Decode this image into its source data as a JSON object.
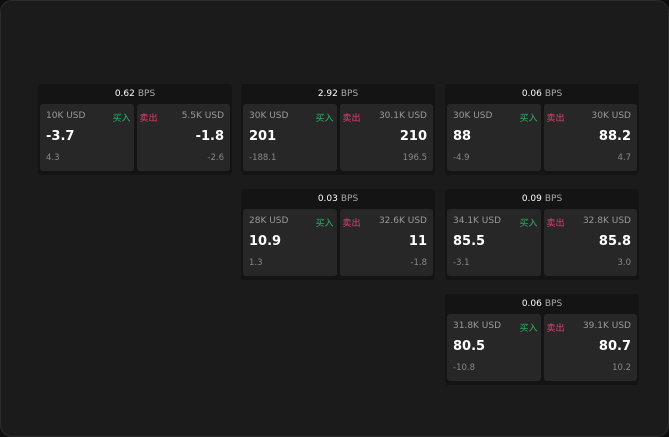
{
  "labels": {
    "unit": "BPS",
    "buy": "买入",
    "sell": "卖出"
  },
  "colors": {
    "buy": "#2db46a",
    "sell": "#e0406a",
    "background": "#1b1b1b"
  },
  "widgets": [
    {
      "spread": "0.62",
      "buy": {
        "size": "10K USD",
        "price": "-3.7",
        "change": "4.3"
      },
      "sell": {
        "size": "5.5K USD",
        "price": "-1.8",
        "change": "-2.6"
      }
    },
    {
      "spread": "2.92",
      "buy": {
        "size": "30K USD",
        "price": "201",
        "change": "-188.1"
      },
      "sell": {
        "size": "30.1K USD",
        "price": "210",
        "change": "196.5"
      }
    },
    {
      "spread": "0.06",
      "buy": {
        "size": "30K USD",
        "price": "88",
        "change": "-4.9"
      },
      "sell": {
        "size": "30K USD",
        "price": "88.2",
        "change": "4.7"
      }
    },
    {
      "spread": "0.03",
      "buy": {
        "size": "28K USD",
        "price": "10.9",
        "change": "1.3"
      },
      "sell": {
        "size": "32.6K USD",
        "price": "11",
        "change": "-1.8"
      }
    },
    {
      "spread": "0.09",
      "buy": {
        "size": "34.1K USD",
        "price": "85.5",
        "change": "-3.1"
      },
      "sell": {
        "size": "32.8K USD",
        "price": "85.8",
        "change": "3.0"
      }
    },
    {
      "spread": "0.06",
      "buy": {
        "size": "31.8K USD",
        "price": "80.5",
        "change": "-10.8"
      },
      "sell": {
        "size": "39.1K USD",
        "price": "80.7",
        "change": "10.2"
      }
    }
  ]
}
